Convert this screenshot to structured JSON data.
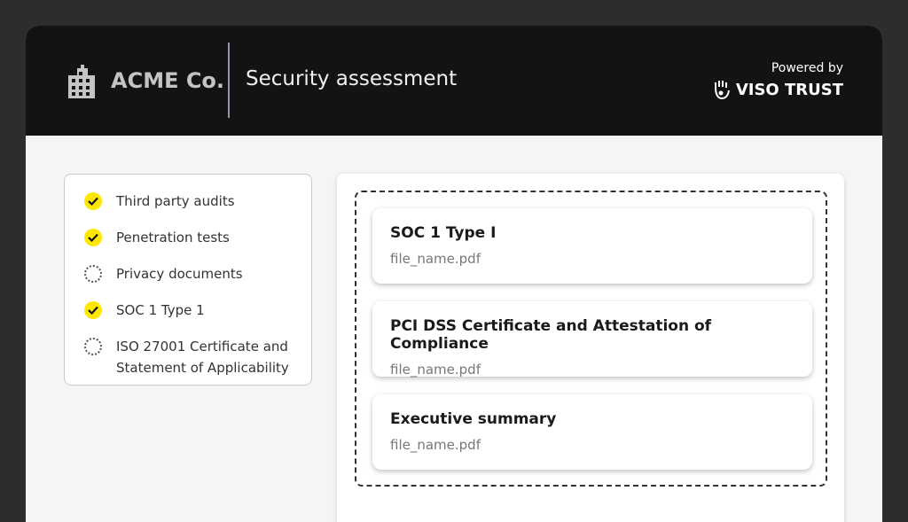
{
  "header": {
    "company": "ACME Co.",
    "title": "Security assessment",
    "powered_by": "Powered by",
    "brand": "VISO TRUST"
  },
  "checklist": [
    {
      "label": "Third party audits",
      "status": "done"
    },
    {
      "label": "Penetration tests",
      "status": "done"
    },
    {
      "label": "Privacy documents",
      "status": "pending"
    },
    {
      "label": "SOC 1 Type 1",
      "status": "done"
    },
    {
      "label": "ISO 27001 Certificate and Statement of Applicability",
      "status": "pending"
    }
  ],
  "documents": [
    {
      "title": "SOC 1 Type I",
      "file": "file_name.pdf"
    },
    {
      "title": "PCI DSS Certificate and Attestation of Compliance",
      "file": "file_name.pdf"
    },
    {
      "title": "Executive summary",
      "file": "file_name.pdf"
    }
  ],
  "colors": {
    "check": "#ffe800",
    "header": "#121313"
  }
}
